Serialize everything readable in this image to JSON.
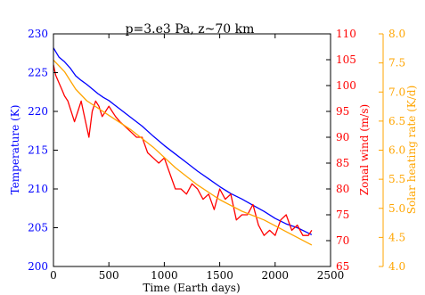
{
  "chart_data": {
    "type": "line",
    "title": "p=3.e3 Pa, z~70 km",
    "xlabel": "Time (Earth days)",
    "xlim": [
      0,
      2500
    ],
    "x_ticks": [
      0,
      500,
      1000,
      1500,
      2000,
      2500
    ],
    "axes": [
      {
        "id": "temperature",
        "label": "Temperature (K)",
        "color": "#0000ff",
        "side": "left",
        "ylim": [
          200,
          230
        ],
        "ticks": [
          200,
          205,
          210,
          215,
          220,
          225,
          230
        ]
      },
      {
        "id": "zonal_wind",
        "label": "Zonal wind (m/s)",
        "color": "#ff0000",
        "side": "right",
        "ylim": [
          65,
          110
        ],
        "ticks": [
          65,
          70,
          75,
          80,
          85,
          90,
          95,
          100,
          105,
          110
        ]
      },
      {
        "id": "solar_heating",
        "label": "Solar heating rate (K/d)",
        "color": "#ffa500",
        "side": "right-outer",
        "ylim": [
          4.0,
          8.0
        ],
        "ticks": [
          "4.0",
          "4.5",
          "5.0",
          "5.5",
          "6.0",
          "6.5",
          "7.0",
          "7.5",
          "8.0"
        ]
      }
    ],
    "series": [
      {
        "axis": "temperature",
        "x": [
          0,
          25,
          50,
          100,
          150,
          200,
          250,
          300,
          350,
          400,
          450,
          500,
          600,
          700,
          800,
          900,
          1000,
          1100,
          1200,
          1300,
          1400,
          1500,
          1600,
          1700,
          1800,
          1900,
          2000,
          2100,
          2200,
          2300,
          2330
        ],
        "values": [
          228.2,
          227.6,
          227.0,
          226.4,
          225.6,
          224.6,
          224.0,
          223.5,
          222.9,
          222.3,
          221.8,
          221.4,
          220.3,
          219.2,
          218.1,
          216.8,
          215.6,
          214.5,
          213.4,
          212.3,
          211.3,
          210.3,
          209.4,
          208.7,
          207.9,
          207.1,
          206.2,
          205.5,
          205.0,
          204.3,
          204.1
        ]
      },
      {
        "axis": "zonal_wind",
        "x": [
          0,
          20,
          40,
          60,
          80,
          100,
          130,
          160,
          190,
          220,
          250,
          280,
          300,
          320,
          350,
          380,
          410,
          440,
          470,
          500,
          530,
          560,
          600,
          650,
          700,
          750,
          800,
          850,
          900,
          950,
          1000,
          1050,
          1100,
          1150,
          1200,
          1250,
          1300,
          1350,
          1400,
          1450,
          1500,
          1550,
          1600,
          1650,
          1700,
          1750,
          1800,
          1850,
          1900,
          1950,
          2000,
          2050,
          2100,
          2150,
          2200,
          2250,
          2300,
          2330
        ],
        "values": [
          104,
          102,
          101,
          100,
          99,
          98,
          97,
          95,
          93,
          95,
          97,
          94,
          92,
          90,
          95,
          97,
          96,
          94,
          95,
          96,
          95,
          94,
          93,
          92,
          91,
          90,
          90,
          87,
          86,
          85,
          86,
          83,
          80,
          80,
          79,
          81,
          80,
          78,
          79,
          76,
          80,
          78,
          79,
          74,
          75,
          75,
          77,
          73,
          71,
          72,
          71,
          74,
          75,
          72,
          73,
          71,
          71,
          72
        ]
      },
      {
        "axis": "solar_heating",
        "x": [
          0,
          100,
          200,
          300,
          500,
          700,
          900,
          1100,
          1300,
          1500,
          1700,
          1900,
          2100,
          2300,
          2330
        ],
        "values": [
          7.55,
          7.35,
          7.05,
          6.85,
          6.6,
          6.35,
          6.05,
          5.7,
          5.4,
          5.15,
          4.95,
          4.8,
          4.6,
          4.4,
          4.37
        ]
      }
    ]
  }
}
